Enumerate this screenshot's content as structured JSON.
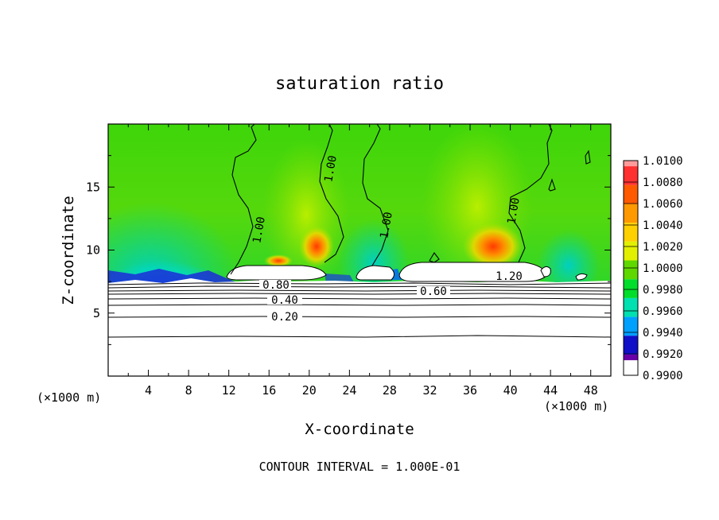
{
  "chart_data": {
    "type": "heatmap",
    "title": "saturation ratio",
    "xlabel": "X-coordinate",
    "ylabel": "Z-coordinate",
    "x_unit_left": "(×1000 m)",
    "x_unit_right": "(×1000 m)",
    "footer": "CONTOUR INTERVAL = 1.000E-01",
    "xlim": [
      0,
      50
    ],
    "ylim": [
      0,
      20
    ],
    "x_ticks": [
      4,
      8,
      12,
      16,
      20,
      24,
      28,
      32,
      36,
      40,
      44,
      48
    ],
    "y_ticks": [
      5,
      10,
      15
    ],
    "colorbar": {
      "levels": [
        "1.0100",
        "1.0080",
        "1.0060",
        "1.0040",
        "1.0020",
        "1.0000",
        "0.9980",
        "0.9960",
        "0.9940",
        "0.9920",
        "0.9900"
      ],
      "colors": [
        "#ff9a9a",
        "#ff3030",
        "#ff5a00",
        "#ff9900",
        "#ffd000",
        "#e2f000",
        "#5fd800",
        "#00dd2a",
        "#00e0b0",
        "#00a0ff",
        "#1010c8",
        "#6a00a8"
      ]
    },
    "contours": [
      {
        "label": "1.00",
        "level": 1.0
      },
      {
        "label": "0.80",
        "level": 0.8
      },
      {
        "label": "0.60",
        "level": 0.6
      },
      {
        "label": "0.40",
        "level": 0.4
      },
      {
        "label": "0.20",
        "level": 0.2
      },
      {
        "label": "1.20",
        "level": 1.2
      }
    ],
    "fields": {
      "below_cloud_base": "subsaturated",
      "above": "near 1.0000"
    },
    "hotspots": [
      {
        "x": 20.5,
        "z": 10.2,
        "value": 1.006
      },
      {
        "x": 38.5,
        "z": 10.0,
        "value": 1.008
      },
      {
        "x": 6.0,
        "z": 8.0,
        "value": 0.992
      },
      {
        "x": 25.5,
        "z": 8.2,
        "value": 0.994
      }
    ]
  }
}
